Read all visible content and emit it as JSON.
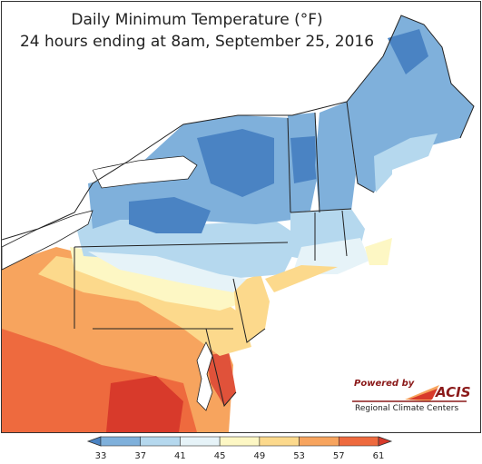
{
  "title": {
    "line1": "Daily Minimum Temperature (°F)",
    "line2": "24 hours ending at 8am, September 25, 2016"
  },
  "logo": {
    "powered_by": "Powered by",
    "name": "ACIS",
    "subtitle": "Regional Climate Centers"
  },
  "legend": {
    "ticks": [
      "33",
      "37",
      "41",
      "45",
      "49",
      "53",
      "57",
      "61"
    ],
    "colors": [
      "#4a83c3",
      "#7fb0db",
      "#b5d8ee",
      "#e6f3f8",
      "#fdf7c4",
      "#fcd98c",
      "#f7a45e",
      "#ee6a3e",
      "#d83a2b"
    ]
  },
  "colors": {
    "lake": "#ffffff",
    "ocean": "#ffffff",
    "border": "#222222"
  }
}
